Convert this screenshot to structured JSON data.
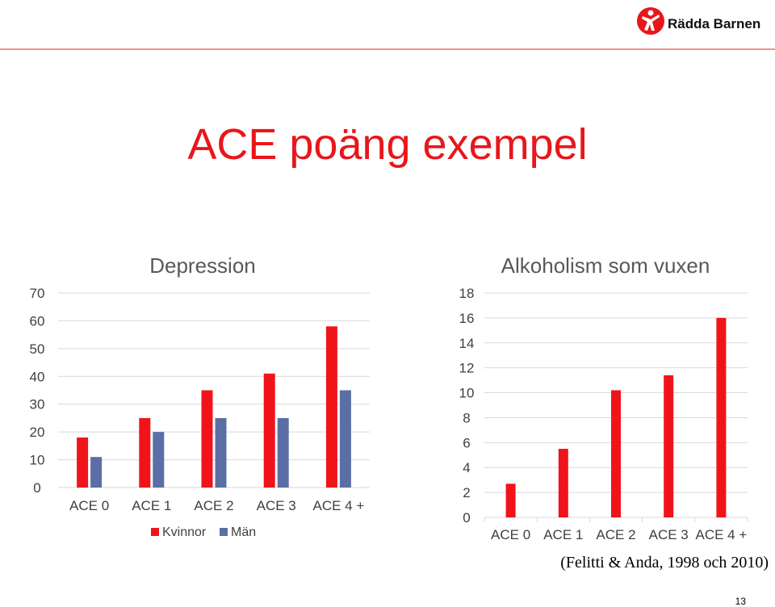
{
  "slide": {
    "title": "ACE poäng exempel",
    "logo_text": "Rädda Barnen",
    "citation": "(Felitti & Anda, 1998 och 2010)",
    "page_number": "13",
    "colors": {
      "red": "#f0141a",
      "blue": "#5b6fa6",
      "grid": "#d9d9d9",
      "title": "#e8161b"
    }
  },
  "chart_data": [
    {
      "type": "bar",
      "title": "Depression",
      "categories": [
        "ACE 0",
        "ACE 1",
        "ACE 2",
        "ACE 3",
        "ACE 4 +"
      ],
      "series": [
        {
          "name": "Kvinnor",
          "values": [
            18,
            25,
            35,
            41,
            58
          ],
          "color": "#f0141a"
        },
        {
          "name": "Män",
          "values": [
            11,
            20,
            25,
            25,
            35
          ],
          "color": "#5b6fa6"
        }
      ],
      "yticks": [
        0,
        10,
        20,
        30,
        40,
        50,
        60,
        70
      ],
      "ylim": [
        0,
        70
      ],
      "grid": true,
      "legend": "bottom"
    },
    {
      "type": "bar",
      "title": "Alkoholism som vuxen",
      "categories": [
        "ACE 0",
        "ACE 1",
        "ACE 2",
        "ACE 3",
        "ACE 4 +"
      ],
      "values": [
        2.7,
        5.5,
        10.2,
        11.4,
        16
      ],
      "color": "#f0141a",
      "yticks": [
        0,
        2,
        4,
        6,
        8,
        10,
        12,
        14,
        16,
        18
      ],
      "ylim": [
        0,
        18
      ],
      "grid": true
    }
  ]
}
